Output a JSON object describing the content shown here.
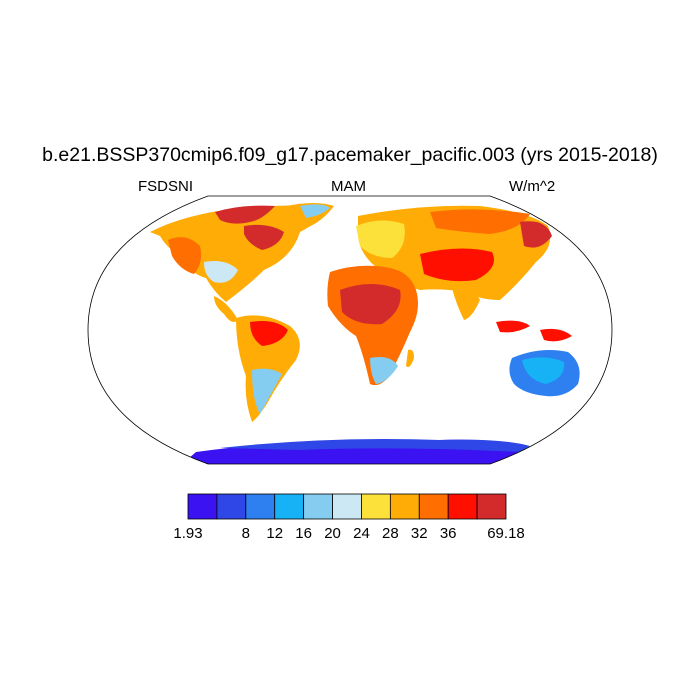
{
  "title": "b.e21.BSSP370cmip6.f09_g17.pacemaker_pacific.003 (yrs 2015-2018)",
  "left_label": "FSDSNI",
  "center_label": "MAM",
  "right_label": "W/m^2",
  "colorbar": {
    "colors": [
      "#3b12f2",
      "#2e47e6",
      "#2e7ff0",
      "#16b2f5",
      "#84ccf0",
      "#cce8f5",
      "#fce13b",
      "#ffad06",
      "#ff6e00",
      "#ff0f00",
      "#d32b2b"
    ],
    "tick_labels": [
      "1.93",
      "8",
      "12",
      "16",
      "20",
      "24",
      "28",
      "32",
      "36",
      "69.18"
    ]
  }
}
